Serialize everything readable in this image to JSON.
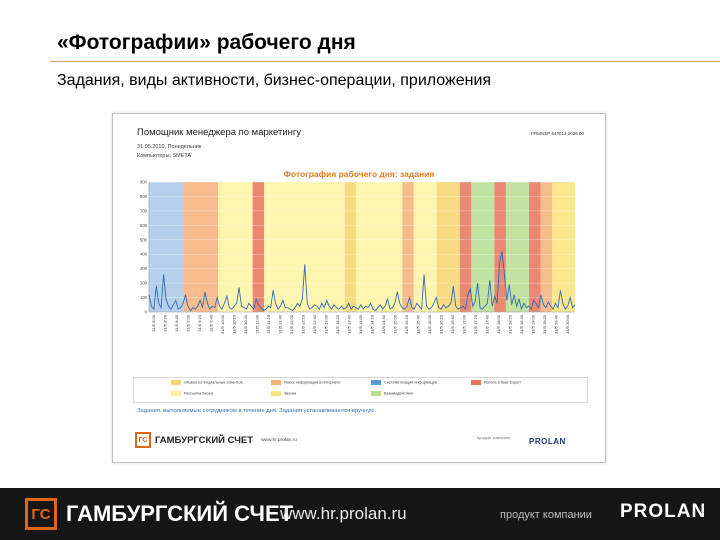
{
  "slide": {
    "title": "«Фотографии» рабочего дня",
    "subtitle": "Задания, виды активности, бизнес-операции, приложения"
  },
  "screenshot": {
    "app_title": "Помощник менеджера по маркетингу",
    "app_code": "PRMNSP 64#013 2026 00",
    "date_line": "31.05.2010, Понедельник",
    "computer_line": "Компьютеры: SMETA",
    "chart_title": "Фотография рабочего дня: задания",
    "note": "Задания, выполняемые сотрудником в течение дня. Задания устанавливаются вручную.",
    "logo_mark": "ГС",
    "logo_name": "ГАМБУРГСКИЙ СЧЕТ",
    "logo_url": "www.hr.prolan.ru",
    "product_label": "продукт компании",
    "product_logo": "PROLAN"
  },
  "legend": [
    {
      "label": "Обзвон потенциальных клиентов",
      "color": "#f5d56b"
    },
    {
      "label": "Поиск информации в интернете",
      "color": "#f5b07a"
    },
    {
      "label": "Систематизация информации",
      "color": "#5b9bd5"
    },
    {
      "label": "Работа в базе Expert",
      "color": "#e8735a"
    },
    {
      "label": "Рассылка писем",
      "color": "#fff3a0"
    },
    {
      "label": "Звонки",
      "color": "#fbe27a"
    },
    {
      "label": "Взаимодействие",
      "color": "#b7dd8e"
    }
  ],
  "chart_data": {
    "type": "line",
    "y_ticks": [
      "900",
      "800",
      "700",
      "600",
      "500",
      "400",
      "300",
      "200",
      "100",
      "0"
    ],
    "ylim": [
      0,
      900
    ],
    "x_labels": [
      "31/5 8:00",
      "31/5 8:20",
      "31/5 8:40",
      "31/5 9:00",
      "31/5 9:20",
      "31/5 9:40",
      "31/5 10:00",
      "31/5 10:20",
      "31/5 10:40",
      "31/5 11:00",
      "31/5 11:20",
      "31/5 11:40",
      "31/5 12:00",
      "31/5 12:20",
      "31/5 12:40",
      "31/5 13:00",
      "31/5 13:20",
      "31/5 13:40",
      "31/5 14:00",
      "31/5 14:20",
      "31/5 14:40",
      "31/5 15:00",
      "31/5 15:20",
      "31/5 15:40",
      "31/5 16:00",
      "31/5 16:20",
      "31/5 16:40",
      "31/5 17:00",
      "31/5 17:20",
      "31/5 17:40",
      "31/5 18:00",
      "31/5 18:20",
      "31/5 18:40",
      "31/5 19:00",
      "31/5 19:20",
      "31/5 19:40",
      "31/5 20:00"
    ],
    "bands": [
      {
        "from": 0,
        "to": 3,
        "color": "#a9c8e8"
      },
      {
        "from": 3,
        "to": 6,
        "color": "#f5b07a"
      },
      {
        "from": 6,
        "to": 9,
        "color": "#fff3a0"
      },
      {
        "from": 9,
        "to": 10,
        "color": "#e8735a"
      },
      {
        "from": 10,
        "to": 17,
        "color": "#fff3a0"
      },
      {
        "from": 17,
        "to": 18,
        "color": "#f5d56b"
      },
      {
        "from": 18,
        "to": 22,
        "color": "#fff3a0"
      },
      {
        "from": 22,
        "to": 23,
        "color": "#f5b07a"
      },
      {
        "from": 23,
        "to": 25,
        "color": "#fff3a0"
      },
      {
        "from": 25,
        "to": 27,
        "color": "#f5d56b"
      },
      {
        "from": 27,
        "to": 28,
        "color": "#e8735a"
      },
      {
        "from": 28,
        "to": 30,
        "color": "#b7dd8e"
      },
      {
        "from": 30,
        "to": 31,
        "color": "#e8735a"
      },
      {
        "from": 31,
        "to": 33,
        "color": "#b7dd8e"
      },
      {
        "from": 33,
        "to": 34,
        "color": "#e8735a"
      },
      {
        "from": 34,
        "to": 35,
        "color": "#f5b07a"
      },
      {
        "from": 35,
        "to": 37,
        "color": "#fbe27a"
      }
    ],
    "series": [
      {
        "color": "#2f6db5",
        "values": [
          120,
          40,
          20,
          180,
          60,
          30,
          260,
          90,
          40,
          20,
          50,
          80,
          20,
          30,
          60,
          120,
          40,
          10,
          30,
          20,
          40,
          80,
          30,
          140,
          60,
          20,
          40,
          30,
          100,
          40,
          20,
          60,
          110,
          30,
          20,
          40,
          60,
          170,
          40,
          30,
          20,
          60,
          40,
          20,
          90,
          50,
          30,
          10,
          20,
          40,
          30,
          150,
          60,
          20,
          40,
          80,
          30,
          30,
          20,
          10,
          30,
          60,
          40,
          90,
          330,
          60,
          20,
          30,
          50,
          40,
          20,
          60,
          30,
          80,
          40,
          20,
          50,
          30,
          20,
          40,
          20,
          30,
          60,
          20,
          40,
          30,
          20,
          50,
          20,
          40,
          30,
          60,
          20,
          10,
          30,
          50,
          20,
          40,
          90,
          20,
          30,
          60,
          140,
          60,
          30,
          20,
          40,
          100,
          30,
          20,
          60,
          40,
          20,
          260,
          40,
          20,
          30,
          60,
          100,
          30,
          20,
          50,
          30,
          40,
          60,
          180,
          40,
          20,
          30,
          40,
          20,
          120,
          160,
          40,
          70,
          200,
          30,
          20,
          40,
          60,
          220,
          40,
          110,
          60,
          340,
          420,
          260,
          80,
          190,
          50,
          120,
          40,
          90,
          20,
          60,
          30,
          40,
          20,
          80,
          60,
          30,
          120,
          50,
          30,
          70,
          40,
          20,
          60,
          30,
          150,
          60,
          20,
          40,
          100,
          30,
          50
        ]
      }
    ]
  }
}
